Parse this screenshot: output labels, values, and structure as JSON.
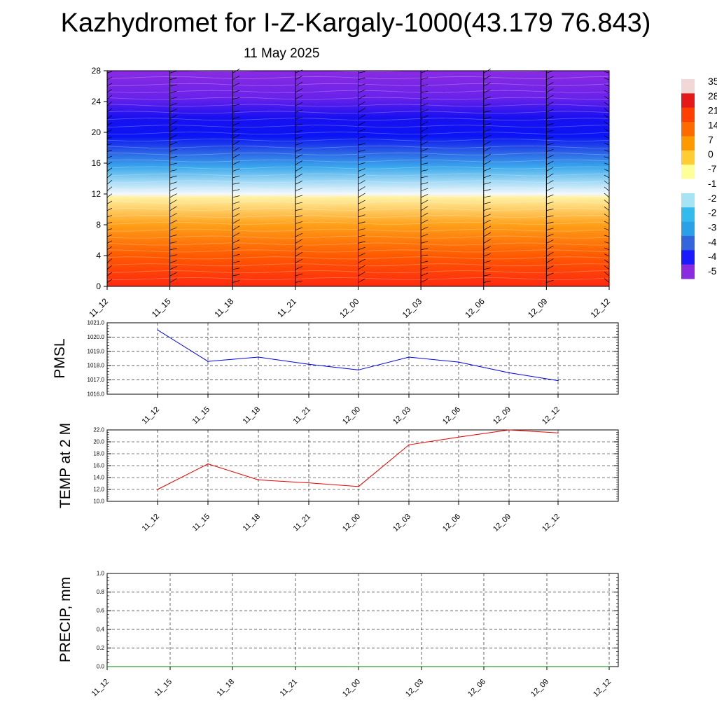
{
  "title": "Kazhydromet for I-Z-Kargaly-1000(43.179 76.843)",
  "subtitle": "11 May 2025",
  "chart_data": [
    {
      "type": "heatmap",
      "name": "vertical-section",
      "x": [
        "11_12",
        "11_15",
        "11_18",
        "11_21",
        "12_00",
        "12_03",
        "12_06",
        "12_09",
        "12_12"
      ],
      "y_ticks": [
        "0",
        "4",
        "8",
        "12",
        "16",
        "20",
        "24",
        "28"
      ],
      "ylim": [
        0,
        28
      ],
      "colorbar_labels": [
        "35",
        "28",
        "21",
        "14",
        "7",
        "0",
        "-7",
        "-1",
        "-2",
        "-2",
        "-3",
        "-4",
        "-4",
        "-5"
      ],
      "colorbar_colors": [
        "#f2d7d7",
        "#e61919",
        "#ff4000",
        "#ff6a00",
        "#ff9900",
        "#ffcc33",
        "#ffff99",
        "#ffffff",
        "#a6e3f5",
        "#33bbee",
        "#2aa0e8",
        "#3366dd",
        "#1a1aff",
        "#8a2be2"
      ],
      "field_colors": [
        {
          "y": 0,
          "color": "#ff2a10"
        },
        {
          "y": 4,
          "color": "#ff5a00"
        },
        {
          "y": 8,
          "color": "#ffa018"
        },
        {
          "y": 11.6,
          "color": "#fff2a6"
        },
        {
          "y": 12,
          "color": "#f2f8ff"
        },
        {
          "y": 13.5,
          "color": "#a8dcf5"
        },
        {
          "y": 15.5,
          "color": "#3aa8ec"
        },
        {
          "y": 17.5,
          "color": "#2a5ee6"
        },
        {
          "y": 19.5,
          "color": "#0a14f5"
        },
        {
          "y": 22,
          "color": "#1a10f0"
        },
        {
          "y": 24.5,
          "color": "#6a22ea"
        },
        {
          "y": 28,
          "color": "#8a2be2"
        }
      ]
    },
    {
      "type": "line",
      "ylabel": "PMSL",
      "x": [
        "11_12",
        "11_15",
        "11_18",
        "11_21",
        "12_00",
        "12_03",
        "12_06",
        "12_09",
        "12_12"
      ],
      "y_ticks": [
        "1016.0",
        "1017.0",
        "1018.0",
        "1019.0",
        "1020.0",
        "1021.0"
      ],
      "ylim": [
        1016,
        1021
      ],
      "series": [
        {
          "values": [
            1020.5,
            1018.3,
            1018.6,
            1018.1,
            1017.7,
            1018.6,
            1018.25,
            1017.5,
            1016.95
          ],
          "color": "#0000ee"
        }
      ]
    },
    {
      "type": "line",
      "ylabel": "TEMP at 2 M",
      "x": [
        "11_12",
        "11_15",
        "11_18",
        "11_21",
        "12_00",
        "12_03",
        "12_06",
        "12_09",
        "12_12"
      ],
      "y_ticks": [
        "10.0",
        "12.0",
        "14.0",
        "16.0",
        "18.0",
        "20.0",
        "22.0"
      ],
      "ylim": [
        10,
        22
      ],
      "series": [
        {
          "values": [
            12.0,
            16.3,
            13.6,
            13.1,
            12.5,
            19.5,
            20.8,
            22.0,
            21.5
          ],
          "color": "#ee0000"
        }
      ]
    },
    {
      "type": "line",
      "ylabel": "PRECIP, mm",
      "x": [
        "11_12",
        "11_15",
        "11_18",
        "11_21",
        "12_00",
        "12_03",
        "12_06",
        "12_09",
        "12_12"
      ],
      "y_ticks": [
        "0.0",
        "0.2",
        "0.4",
        "0.6",
        "0.8",
        "1.0"
      ],
      "ylim": [
        0,
        1
      ],
      "series": [
        {
          "values": [
            0,
            0,
            0,
            0,
            0,
            0,
            0,
            0,
            0
          ],
          "color": "#008000"
        }
      ]
    }
  ]
}
